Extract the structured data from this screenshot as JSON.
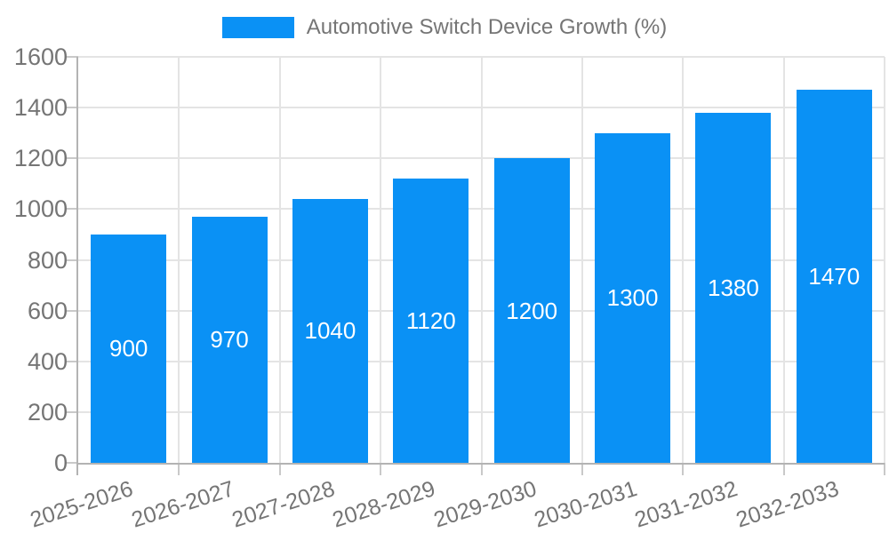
{
  "colors": {
    "bar": "#0a91f5",
    "axis_text": "#757575",
    "value_label_text": "#ffffff",
    "grid_line": "#e4e4e4",
    "axis_line": "#b3b3b3",
    "tick_mark": "#c9c9c9",
    "background": "#ffffff"
  },
  "legend": {
    "label": "Automotive Switch Device Growth (%)"
  },
  "chart_data": {
    "type": "bar",
    "title": "Automotive Switch Device Growth (%)",
    "legend_position": "top-center",
    "categories": [
      "2025-2026",
      "2026-2027",
      "2027-2028",
      "2028-2029",
      "2029-2030",
      "2030-2031",
      "2031-2032",
      "2032-2033"
    ],
    "values": [
      900,
      970,
      1040,
      1120,
      1200,
      1300,
      1380,
      1470
    ],
    "xlabel": "",
    "ylabel": "",
    "ylim": [
      0,
      1600
    ],
    "yticks": [
      0,
      200,
      400,
      600,
      800,
      1000,
      1200,
      1400,
      1600
    ],
    "grid": "horizontal and vertical light-gray gridlines",
    "value_labels": "inside bars, centered, white",
    "x_tick_label_rotation_deg": -18
  }
}
